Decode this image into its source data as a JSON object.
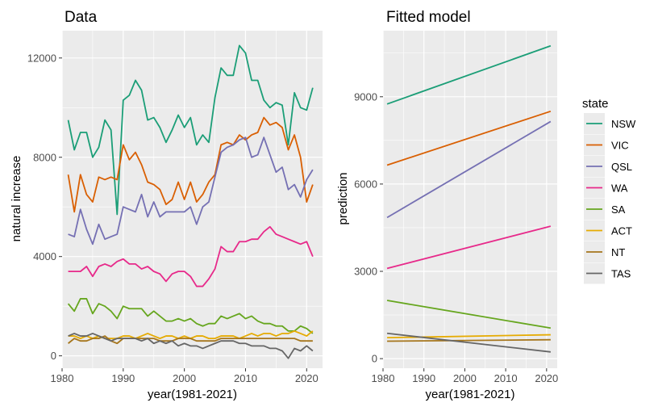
{
  "chart_data": [
    {
      "type": "line",
      "title": "Data",
      "xlabel": "year(1981-2021)",
      "ylabel": "natural increase",
      "xlim": [
        1980,
        2022.6
      ],
      "ylim": [
        -500,
        13100
      ],
      "xticks": [
        1980,
        1990,
        2000,
        2010,
        2020
      ],
      "yticks": [
        0,
        4000,
        8000,
        12000
      ],
      "ytick_labels": [
        "0",
        "4000",
        "8000",
        "12000"
      ],
      "grid": true,
      "x": [
        1981,
        1982,
        1983,
        1984,
        1985,
        1986,
        1987,
        1988,
        1989,
        1990,
        1991,
        1992,
        1993,
        1994,
        1995,
        1996,
        1997,
        1998,
        1999,
        2000,
        2001,
        2002,
        2003,
        2004,
        2005,
        2006,
        2007,
        2008,
        2009,
        2010,
        2011,
        2012,
        2013,
        2014,
        2015,
        2016,
        2017,
        2018,
        2019,
        2020,
        2021
      ],
      "series": [
        {
          "name": "NSW",
          "color": "#1b9e77",
          "values": [
            9500,
            8300,
            9000,
            9000,
            8000,
            8400,
            9500,
            9100,
            5700,
            10300,
            10500,
            11100,
            10700,
            9500,
            9600,
            9200,
            8600,
            9100,
            9700,
            9200,
            9600,
            8500,
            8900,
            8600,
            10400,
            11600,
            11300,
            11300,
            12500,
            12200,
            11100,
            11100,
            10300,
            10000,
            10200,
            10100,
            8500,
            10600,
            10000,
            9900,
            10800
          ]
        },
        {
          "name": "VIC",
          "color": "#d95f02",
          "values": [
            7300,
            5800,
            7300,
            6500,
            6200,
            7200,
            7100,
            7200,
            7100,
            8500,
            7900,
            8200,
            7700,
            7000,
            6900,
            6700,
            6100,
            6300,
            7000,
            6300,
            7000,
            6200,
            6500,
            7000,
            7300,
            8500,
            8600,
            8500,
            8900,
            8700,
            8900,
            9000,
            9600,
            9300,
            9400,
            9200,
            8300,
            8900,
            8000,
            6200,
            6900
          ]
        },
        {
          "name": "QSL",
          "color": "#7570b3",
          "values": [
            4900,
            4800,
            5900,
            5100,
            4500,
            5300,
            4700,
            4800,
            4900,
            6000,
            5900,
            5800,
            6500,
            5600,
            6200,
            5600,
            5800,
            5800,
            5800,
            5800,
            6000,
            5300,
            6000,
            6200,
            7200,
            8200,
            8400,
            8500,
            8700,
            8800,
            8000,
            8100,
            8800,
            8100,
            7400,
            7600,
            6700,
            6900,
            6400,
            7100,
            7500
          ]
        },
        {
          "name": "WA",
          "color": "#e7298a",
          "values": [
            3400,
            3400,
            3400,
            3600,
            3200,
            3600,
            3700,
            3600,
            3800,
            3900,
            3700,
            3700,
            3500,
            3600,
            3400,
            3300,
            3000,
            3300,
            3400,
            3400,
            3200,
            2800,
            2800,
            3100,
            3500,
            4400,
            4200,
            4200,
            4600,
            4600,
            4700,
            4700,
            5000,
            5200,
            4900,
            4800,
            4700,
            4600,
            4500,
            4600,
            4000
          ]
        },
        {
          "name": "SA",
          "color": "#66a61e",
          "values": [
            2100,
            1800,
            2300,
            2300,
            1700,
            2100,
            2000,
            1800,
            1500,
            2000,
            1900,
            1900,
            1900,
            1600,
            1800,
            1600,
            1400,
            1400,
            1500,
            1400,
            1500,
            1300,
            1200,
            1300,
            1300,
            1600,
            1500,
            1600,
            1700,
            1500,
            1600,
            1400,
            1300,
            1300,
            1200,
            1200,
            1000,
            1000,
            1200,
            1100,
            900
          ]
        },
        {
          "name": "ACT",
          "color": "#e6ab02",
          "values": [
            800,
            800,
            700,
            800,
            700,
            800,
            700,
            700,
            700,
            800,
            800,
            700,
            800,
            900,
            800,
            700,
            800,
            800,
            700,
            800,
            700,
            800,
            800,
            700,
            700,
            800,
            800,
            800,
            700,
            800,
            900,
            800,
            900,
            900,
            800,
            900,
            900,
            1000,
            900,
            800,
            1000
          ]
        },
        {
          "name": "NT",
          "color": "#a6761d",
          "values": [
            500,
            700,
            600,
            600,
            700,
            700,
            800,
            600,
            500,
            700,
            700,
            700,
            700,
            700,
            700,
            600,
            600,
            600,
            700,
            700,
            700,
            600,
            600,
            600,
            600,
            700,
            700,
            700,
            700,
            700,
            700,
            700,
            700,
            700,
            700,
            700,
            700,
            700,
            600,
            600,
            600
          ]
        },
        {
          "name": "TAS",
          "color": "#666666",
          "values": [
            800,
            900,
            800,
            800,
            900,
            800,
            700,
            600,
            700,
            700,
            700,
            700,
            600,
            700,
            500,
            600,
            500,
            600,
            400,
            500,
            400,
            400,
            300,
            400,
            500,
            600,
            600,
            600,
            500,
            500,
            400,
            400,
            400,
            300,
            300,
            200,
            -100,
            300,
            200,
            400,
            200
          ]
        }
      ]
    },
    {
      "type": "line",
      "title": "Fitted model",
      "xlabel": "year(1981-2021)",
      "ylabel": "prediction",
      "xlim": [
        1980,
        2022.6
      ],
      "ylim": [
        -330,
        11270
      ],
      "xticks": [
        1980,
        1990,
        2000,
        2010,
        2020
      ],
      "yticks": [
        0,
        3000,
        6000,
        9000
      ],
      "ytick_labels": [
        "0",
        "3000",
        "6000",
        "9000"
      ],
      "grid": true,
      "x": [
        1981,
        2021
      ],
      "series": [
        {
          "name": "NSW",
          "color": "#1b9e77",
          "values": [
            8750,
            10750
          ]
        },
        {
          "name": "VIC",
          "color": "#d95f02",
          "values": [
            6650,
            8500
          ]
        },
        {
          "name": "QSL",
          "color": "#7570b3",
          "values": [
            4850,
            8150
          ]
        },
        {
          "name": "WA",
          "color": "#e7298a",
          "values": [
            3100,
            4550
          ]
        },
        {
          "name": "SA",
          "color": "#66a61e",
          "values": [
            2000,
            1050
          ]
        },
        {
          "name": "ACT",
          "color": "#e6ab02",
          "values": [
            720,
            820
          ]
        },
        {
          "name": "NT",
          "color": "#a6761d",
          "values": [
            600,
            650
          ]
        },
        {
          "name": "TAS",
          "color": "#666666",
          "values": [
            870,
            230
          ]
        }
      ]
    }
  ],
  "legend": {
    "title": "state",
    "placement": "right",
    "items": [
      {
        "label": "NSW",
        "color": "#1b9e77"
      },
      {
        "label": "VIC",
        "color": "#d95f02"
      },
      {
        "label": "QSL",
        "color": "#7570b3"
      },
      {
        "label": "WA",
        "color": "#e7298a"
      },
      {
        "label": "SA",
        "color": "#66a61e"
      },
      {
        "label": "ACT",
        "color": "#e6ab02"
      },
      {
        "label": "NT",
        "color": "#a6761d"
      },
      {
        "label": "TAS",
        "color": "#666666"
      }
    ]
  },
  "style": {
    "panel_background": "#ebebeb",
    "grid_major": "#ffffff",
    "tick_label_color": "#4d4d4d"
  }
}
